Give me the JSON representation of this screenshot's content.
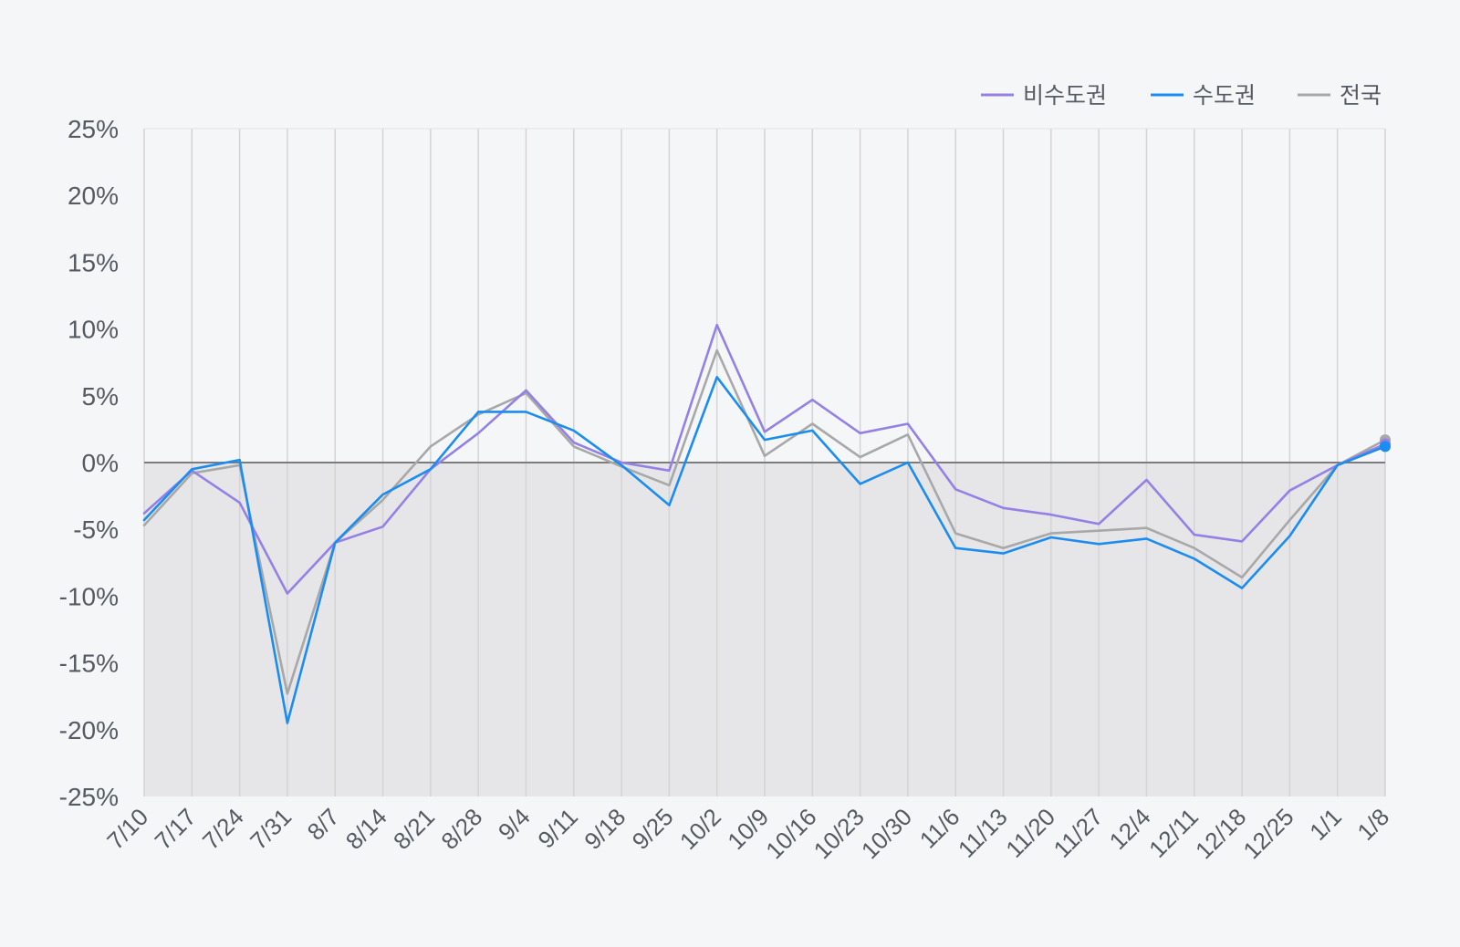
{
  "chart_data": {
    "type": "line",
    "categories": [
      "7/10",
      "7/17",
      "7/24",
      "7/31",
      "8/7",
      "8/14",
      "8/21",
      "8/28",
      "9/4",
      "9/11",
      "9/18",
      "9/25",
      "10/2",
      "10/9",
      "10/16",
      "10/23",
      "10/30",
      "11/6",
      "11/13",
      "11/20",
      "11/27",
      "12/4",
      "12/11",
      "12/18",
      "12/25",
      "1/1",
      "1/8"
    ],
    "y_ticks": [
      "25%",
      "20%",
      "15%",
      "10%",
      "5%",
      "0%",
      "-5%",
      "-10%",
      "-15%",
      "-20%",
      "-25%"
    ],
    "ylim": [
      -25,
      25
    ],
    "grid": true,
    "negative_region_shaded": true,
    "legend_position": "top-right",
    "series": [
      {
        "name": "비수도권",
        "color": "#9580e6",
        "values": [
          -3.8,
          -0.6,
          -3.0,
          -9.8,
          -6.0,
          -4.8,
          -0.5,
          2.2,
          5.4,
          1.5,
          0.0,
          -0.6,
          10.3,
          2.3,
          4.7,
          2.2,
          2.9,
          -2.0,
          -3.4,
          -3.9,
          -4.6,
          -1.3,
          -5.4,
          -5.9,
          -2.1,
          -0.2,
          1.4
        ]
      },
      {
        "name": "수도권",
        "color": "#1b8cf0",
        "values": [
          -4.3,
          -0.5,
          0.2,
          -19.5,
          -6.0,
          -2.4,
          -0.5,
          3.8,
          3.8,
          2.4,
          -0.2,
          -3.2,
          6.4,
          1.7,
          2.4,
          -1.6,
          0.0,
          -6.4,
          -6.8,
          -5.6,
          -6.1,
          -5.7,
          -7.2,
          -9.4,
          -5.5,
          -0.2,
          1.2
        ]
      },
      {
        "name": "전국",
        "color": "#a8a8a8",
        "values": [
          -4.7,
          -0.8,
          -0.2,
          -17.3,
          -6.0,
          -2.8,
          1.2,
          3.6,
          5.2,
          1.2,
          -0.3,
          -1.7,
          8.4,
          0.5,
          2.9,
          0.4,
          2.1,
          -5.3,
          -6.4,
          -5.3,
          -5.1,
          -4.9,
          -6.4,
          -8.6,
          -4.3,
          -0.2,
          1.7
        ]
      }
    ]
  }
}
